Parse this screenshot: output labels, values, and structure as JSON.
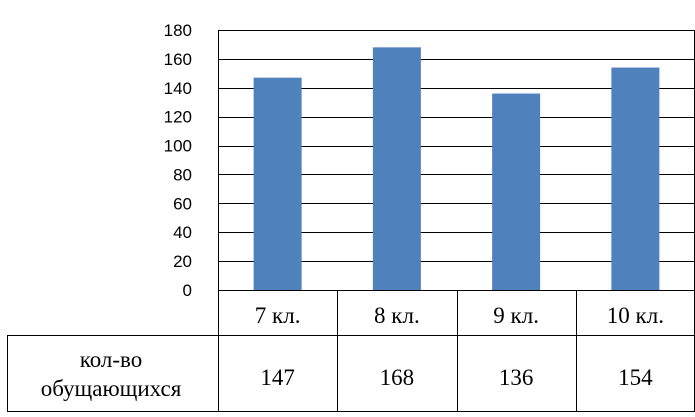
{
  "chart_data": {
    "type": "bar",
    "categories": [
      "7 кл.",
      "8 кл.",
      "9 кл.",
      "10 кл."
    ],
    "series": [
      {
        "name": "кол-во обущающихся",
        "values": [
          147,
          168,
          136,
          154
        ],
        "color": "#4f81bd"
      }
    ],
    "ylim": [
      0,
      180
    ],
    "y_ticks": [
      0,
      20,
      40,
      60,
      80,
      100,
      120,
      140,
      160,
      180
    ],
    "grid": true,
    "data_table": true,
    "title": "",
    "xlabel": "",
    "ylabel": ""
  },
  "table": {
    "row_header": [
      "кол-во",
      "обущающихся"
    ],
    "values": [
      "147",
      "168",
      "136",
      "154"
    ]
  }
}
